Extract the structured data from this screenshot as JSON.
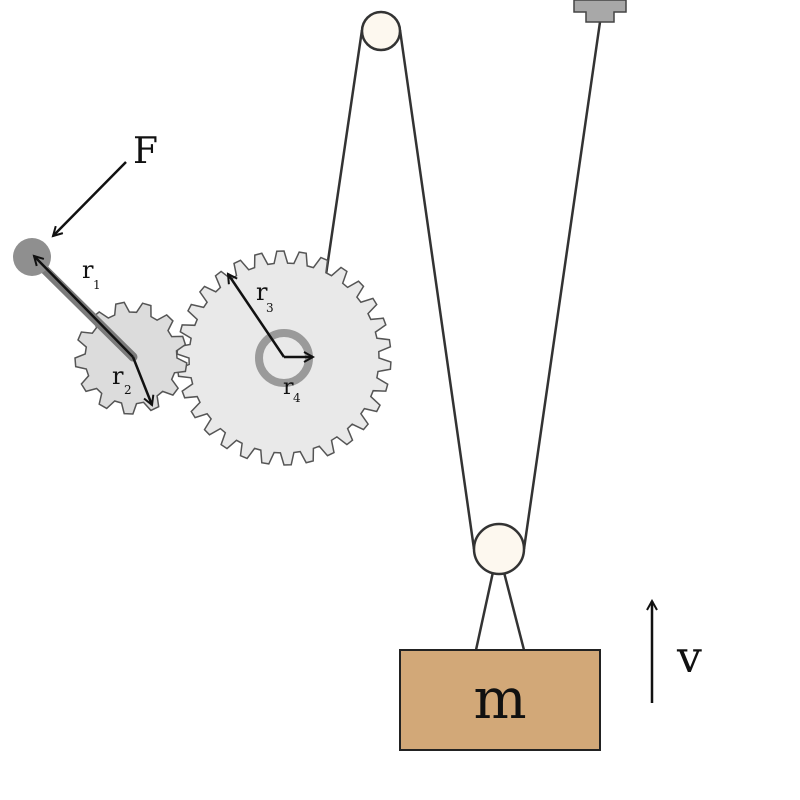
{
  "labels": {
    "force": "F",
    "r1": "r",
    "r1_sub": "1",
    "r2": "r",
    "r2_sub": "2",
    "r3": "r",
    "r3_sub": "3",
    "r4": "r",
    "r4_sub": "4",
    "mass": "m",
    "velocity": "v"
  },
  "colors": {
    "gear_fill": "#e9e9e9",
    "small_gear_fill": "#dcdcdc",
    "gear_stroke": "#555555",
    "pulley_fill": "#fdf8ef",
    "pulley_stroke": "#333333",
    "rope": "#333333",
    "block_fill": "#d2a878",
    "block_stroke": "#222222",
    "handle_fill": "#8f8f8f",
    "anchor_fill": "#a8a8a8",
    "arrow": "#111111",
    "hub_ring": "#9a9a9a"
  },
  "components": {
    "small_gear_teeth": 13,
    "large_gear_teeth": 30
  }
}
